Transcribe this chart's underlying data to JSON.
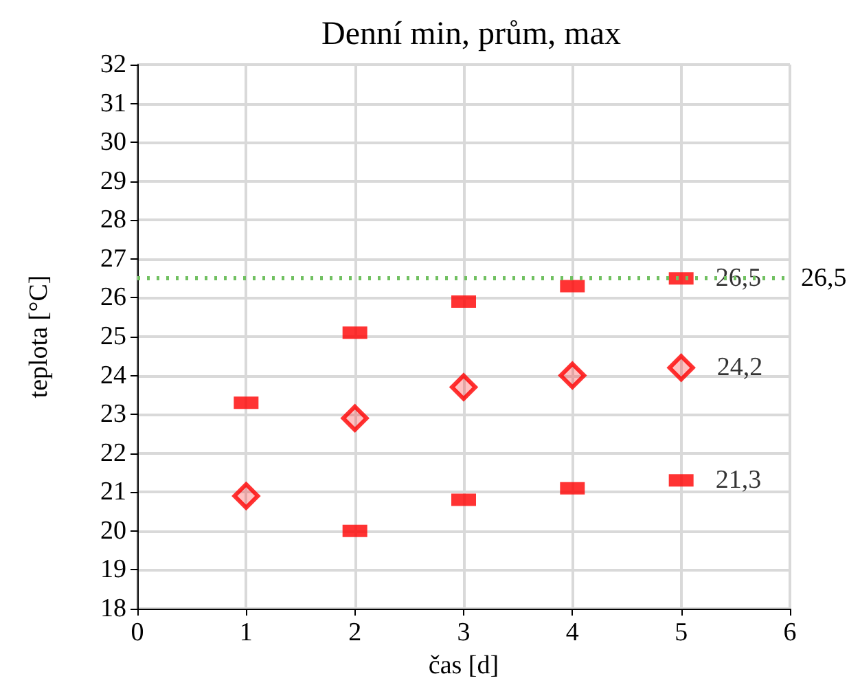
{
  "chart_data": {
    "type": "scatter",
    "title": "Denní min, prům, max",
    "xlabel": "čas [d]",
    "ylabel": "teplota [°C]",
    "x": [
      1,
      2,
      3,
      4,
      5
    ],
    "series": [
      {
        "color": "#ff0000",
        "values": [
          23.3,
          25.1,
          25.9,
          26.3,
          26.5
        ],
        "value_labels": [
          null,
          null,
          null,
          null,
          "26,5"
        ]
      },
      {
        "color": "#ff0000",
        "marker": "diamond",
        "values": [
          20.9,
          22.9,
          23.7,
          24.0,
          24.2
        ],
        "value_labels": [
          null,
          null,
          null,
          null,
          "24,2"
        ]
      },
      {
        "color": "#ff0000",
        "values": [
          null,
          20.0,
          20.8,
          21.1,
          21.3
        ],
        "value_labels": [
          null,
          null,
          null,
          null,
          "21,3"
        ]
      }
    ],
    "xlim": [
      0,
      6
    ],
    "xticks": [
      0,
      1,
      2,
      3,
      4,
      5,
      6
    ],
    "ylim": [
      18,
      32
    ],
    "yticks": [
      18,
      19,
      20,
      21,
      22,
      23,
      24,
      25,
      26,
      27,
      28,
      29,
      30,
      31,
      32
    ],
    "ref_lines": [
      {
        "axis": "y",
        "value": 26.5,
        "label": "26,5",
        "color": "#70c060",
        "line_style": "dotted"
      }
    ],
    "grid": true
  }
}
